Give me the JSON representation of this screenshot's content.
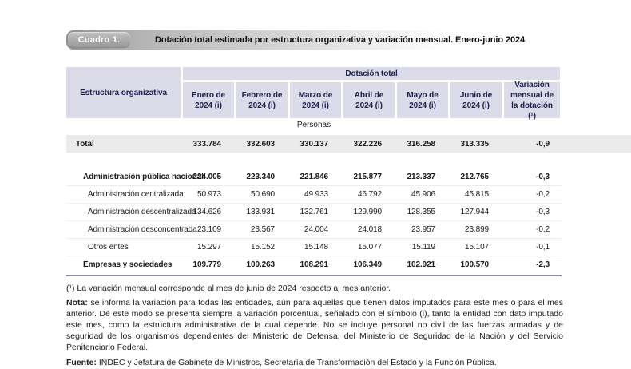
{
  "header": {
    "tag": "Cuadro 1.",
    "title": "Dotación total estimada por estructura organizativa y variación mensual. Enero-junio 2024"
  },
  "table": {
    "corner_header": "Estructura organizativa",
    "group_header": "Dotación total",
    "month_columns": [
      "Enero de 2024 (i)",
      "Febrero de 2024 (i)",
      "Marzo de 2024 (i)",
      "Abril de 2024 (i)",
      "Mayo de 2024 (i)",
      "Junio de 2024 (i)"
    ],
    "variation_column": "Variación mensual de la dotación (¹)",
    "unit_label": "Personas",
    "rows": [
      {
        "label": "Total",
        "values": [
          "333.784",
          "332.603",
          "330.137",
          "322.226",
          "316.258",
          "313.335"
        ],
        "variation": "-0,9"
      },
      {
        "label": "Administración pública nacional",
        "values": [
          "224.005",
          "223.340",
          "221.846",
          "215.877",
          "213.337",
          "212.765"
        ],
        "variation": "-0,3"
      },
      {
        "label": "Administración centralizada",
        "values": [
          "50.973",
          "50.690",
          "49.933",
          "46.792",
          "45.906",
          "45.815"
        ],
        "variation": "-0,2"
      },
      {
        "label": "Administración descentralizada",
        "values": [
          "134.626",
          "133.931",
          "132.761",
          "129.990",
          "128.355",
          "127.944"
        ],
        "variation": "-0,3"
      },
      {
        "label": "Administración desconcentrada",
        "values": [
          "23.109",
          "23.567",
          "24.004",
          "24.018",
          "23.957",
          "23.899"
        ],
        "variation": "-0,2"
      },
      {
        "label": "Otros entes",
        "values": [
          "15.297",
          "15.152",
          "15.148",
          "15.077",
          "15.119",
          "15.107"
        ],
        "variation": "-0,1"
      },
      {
        "label": "Empresas y sociedades",
        "values": [
          "109.779",
          "109.263",
          "108.291",
          "106.349",
          "102.921",
          "100.570"
        ],
        "variation": "-2,3"
      }
    ]
  },
  "footnotes": {
    "note1": "(¹) La variación mensual corresponde al mes de junio de 2024 respecto al mes anterior.",
    "nota_label": "Nota:",
    "nota_text": " se informa la variación para todas las entidades, aún para aquellas que tienen datos imputados para este mes o para el mes anterior. De este modo se presenta siempre la variación porcentual, señalado con el símbolo (i), tanto la entidad con dato imputado este mes, como la estructura administrativa de la cual depende. No se incluye personal no civil de las fuerzas armadas y de seguridad de los organismos dependientes del Ministerio de Defensa, del Ministerio de Seguridad de la Nación y del Servicio Penitenciario Federal.",
    "fuente_label": "Fuente:",
    "fuente_text": " INDEC y Jefatura de Gabinete de Ministros, Secretaría de Transformación del Estado y la Función Pública."
  },
  "colors": {
    "header_cell_bg": "#dcdbe9",
    "header_text": "#22224e",
    "total_row_bg": "#ebebeb",
    "table_bottom_border": "#8f8fa8",
    "titlebar_gradient_start": "#8f8f8f"
  }
}
